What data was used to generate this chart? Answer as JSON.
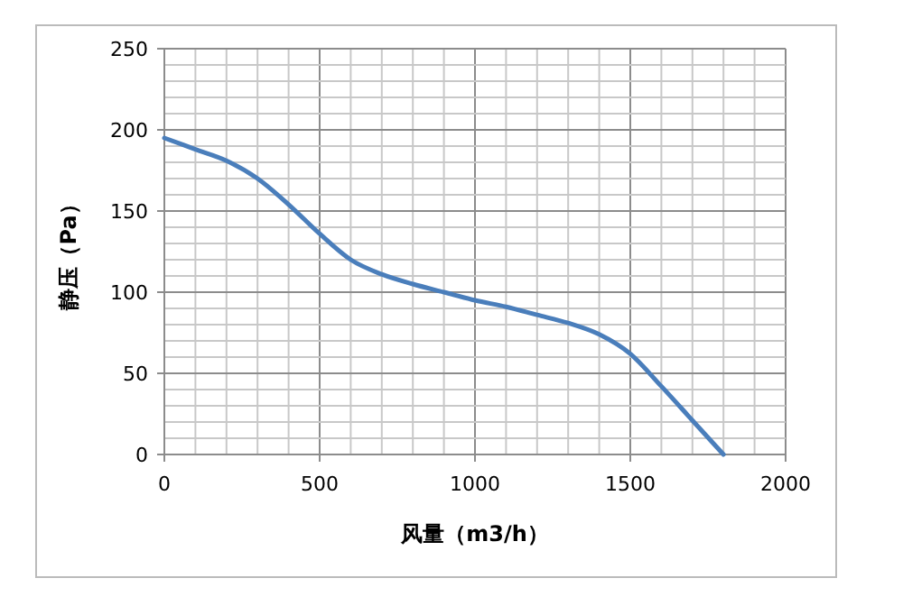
{
  "chart_data": {
    "type": "line",
    "xlabel": "风量（m3/h）",
    "ylabel": "静压（Pa）",
    "x": [
      0,
      100,
      200,
      300,
      400,
      500,
      600,
      700,
      800,
      900,
      1000,
      1100,
      1200,
      1300,
      1400,
      1500,
      1600,
      1700,
      1800
    ],
    "series": [
      {
        "color": "#4a7ebb",
        "values": [
          195,
          188,
          181,
          170,
          154,
          136,
          120,
          111,
          105,
          100,
          95,
          91,
          86,
          81,
          74,
          62,
          42,
          21,
          0
        ]
      }
    ],
    "xlim": [
      0,
      2000
    ],
    "xticks": [
      0,
      {
        "value": 100,
        "label": null
      },
      {
        "value": 200,
        "label": null
      },
      {
        "value": 300,
        "label": null
      },
      {
        "value": 400,
        "label": null
      },
      500,
      {
        "value": 600,
        "label": null
      },
      {
        "value": 700,
        "label": null
      },
      {
        "value": 800,
        "label": null
      },
      {
        "value": 900,
        "label": null
      },
      1000,
      {
        "value": 1100,
        "label": null
      },
      {
        "value": 1200,
        "label": null
      },
      {
        "value": 1300,
        "label": null
      },
      {
        "value": 1400,
        "label": null
      },
      1500,
      {
        "value": 1600,
        "label": null
      },
      {
        "value": 1700,
        "label": null
      },
      {
        "value": 1800,
        "label": null
      },
      {
        "value": 1900,
        "label": null
      },
      2000
    ],
    "ylim": [
      0,
      250
    ],
    "yticks": [
      0,
      {
        "value": 10,
        "label": null
      },
      {
        "value": 20,
        "label": null
      },
      {
        "value": 30,
        "label": null
      },
      {
        "value": 40,
        "label": null
      },
      50,
      {
        "value": 60,
        "label": null
      },
      {
        "value": 70,
        "label": null
      },
      {
        "value": 80,
        "label": null
      },
      {
        "value": 90,
        "label": null
      },
      100,
      {
        "value": 110,
        "label": null
      },
      {
        "value": 120,
        "label": null
      },
      {
        "value": 130,
        "label": null
      },
      {
        "value": 140,
        "label": null
      },
      150,
      {
        "value": 160,
        "label": null
      },
      {
        "value": 170,
        "label": null
      },
      {
        "value": 180,
        "label": null
      },
      {
        "value": 190,
        "label": null
      },
      200,
      {
        "value": 210,
        "label": null
      },
      {
        "value": 220,
        "label": null
      },
      {
        "value": 230,
        "label": null
      },
      {
        "value": 240,
        "label": null
      },
      250
    ],
    "grid": true,
    "marker": "none",
    "line_style": "solid"
  }
}
